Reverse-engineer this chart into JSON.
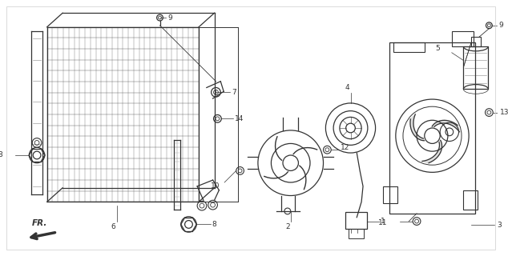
{
  "bg_color": "#ffffff",
  "line_color": "#333333",
  "fig_width": 6.34,
  "fig_height": 3.2,
  "dpi": 100,
  "arrow_label": "FR."
}
